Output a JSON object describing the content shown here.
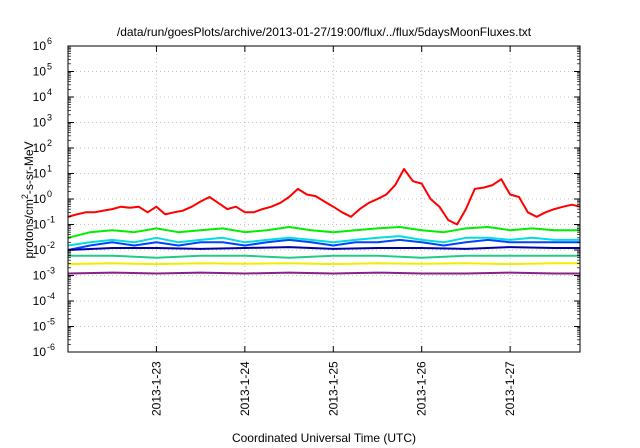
{
  "chart_data": {
    "type": "line",
    "title": "/data/run/goesPlots/archive/2013-01-27/19:00/flux/../flux/5daysMoonFluxes.txt",
    "xlabel": "Coordinated Universal Time (UTC)",
    "ylabel": "protons/cm2-s-sr-MeV",
    "ylabel_parts": [
      "protons/cm",
      "2",
      "-s-sr-MeV"
    ],
    "yscale": "log",
    "ylim": [
      1e-06,
      1000000.0
    ],
    "y_tick_exponents": [
      -6,
      -5,
      -4,
      -3,
      -2,
      -1,
      0,
      1,
      2,
      3,
      4,
      5,
      6
    ],
    "y_tick_base": "10",
    "xlim": [
      "2013-01-22 00:00",
      "2013-01-27 19:00"
    ],
    "x_tick_labels": [
      "2013-1-23",
      "2013-1-24",
      "2013-1-25",
      "2013-1-26",
      "2013-1-27"
    ],
    "x_tick_days_from_2013_01_22": [
      1,
      2,
      3,
      4,
      5
    ],
    "grid": true,
    "legend": "none",
    "series": [
      {
        "color": "#ff0000",
        "x_days": [
          0,
          0.1,
          0.2,
          0.3,
          0.4,
          0.5,
          0.6,
          0.7,
          0.8,
          0.9,
          1.0,
          1.1,
          1.2,
          1.3,
          1.4,
          1.5,
          1.6,
          1.7,
          1.8,
          1.9,
          2.0,
          2.1,
          2.2,
          2.3,
          2.4,
          2.5,
          2.6,
          2.7,
          2.8,
          2.9,
          3.0,
          3.1,
          3.2,
          3.3,
          3.4,
          3.5,
          3.6,
          3.7,
          3.8,
          3.9,
          4.0,
          4.1,
          4.2,
          4.3,
          4.4,
          4.5,
          4.6,
          4.7,
          4.8,
          4.9,
          5.0,
          5.1,
          5.2,
          5.3,
          5.4,
          5.5,
          5.6,
          5.7,
          5.79
        ],
        "y": [
          0.2,
          0.25,
          0.3,
          0.3,
          0.35,
          0.4,
          0.5,
          0.45,
          0.5,
          0.3,
          0.5,
          0.25,
          0.3,
          0.35,
          0.5,
          0.8,
          1.2,
          0.7,
          0.4,
          0.5,
          0.3,
          0.3,
          0.4,
          0.5,
          0.7,
          1.2,
          2.5,
          1.5,
          1.3,
          0.8,
          0.5,
          0.3,
          0.2,
          0.4,
          0.7,
          1.0,
          1.5,
          3.5,
          15,
          5,
          4,
          1.0,
          0.5,
          0.15,
          0.1,
          0.4,
          2.5,
          2.8,
          3.5,
          6,
          1.5,
          1.2,
          0.3,
          0.2,
          0.3,
          0.4,
          0.5,
          0.6,
          0.5
        ]
      },
      {
        "color": "#00ee00",
        "x_days": [
          0,
          0.25,
          0.5,
          0.75,
          1.0,
          1.25,
          1.5,
          1.75,
          2.0,
          2.25,
          2.5,
          2.75,
          3.0,
          3.25,
          3.5,
          3.75,
          4.0,
          4.25,
          4.5,
          4.75,
          5.0,
          5.25,
          5.5,
          5.79
        ],
        "y": [
          0.03,
          0.05,
          0.06,
          0.05,
          0.07,
          0.05,
          0.06,
          0.07,
          0.05,
          0.06,
          0.08,
          0.06,
          0.05,
          0.06,
          0.07,
          0.08,
          0.06,
          0.05,
          0.07,
          0.08,
          0.06,
          0.07,
          0.06,
          0.06
        ]
      },
      {
        "color": "#00dddd",
        "x_days": [
          0,
          0.25,
          0.5,
          0.75,
          1.0,
          1.25,
          1.5,
          1.75,
          2.0,
          2.25,
          2.5,
          2.75,
          3.0,
          3.25,
          3.5,
          3.75,
          4.0,
          4.25,
          4.5,
          4.75,
          5.0,
          5.25,
          5.5,
          5.79
        ],
        "y": [
          0.015,
          0.02,
          0.025,
          0.02,
          0.03,
          0.02,
          0.025,
          0.03,
          0.02,
          0.025,
          0.03,
          0.025,
          0.02,
          0.025,
          0.03,
          0.035,
          0.025,
          0.02,
          0.03,
          0.03,
          0.025,
          0.03,
          0.025,
          0.025
        ]
      },
      {
        "color": "#0044ff",
        "x_days": [
          0,
          0.25,
          0.5,
          0.75,
          1.0,
          1.25,
          1.5,
          1.75,
          2.0,
          2.25,
          2.5,
          2.75,
          3.0,
          3.25,
          3.5,
          3.75,
          4.0,
          4.25,
          4.5,
          4.75,
          5.0,
          5.25,
          5.5,
          5.79
        ],
        "y": [
          0.01,
          0.015,
          0.02,
          0.015,
          0.02,
          0.015,
          0.02,
          0.02,
          0.015,
          0.02,
          0.025,
          0.02,
          0.015,
          0.02,
          0.02,
          0.025,
          0.02,
          0.015,
          0.02,
          0.025,
          0.02,
          0.02,
          0.02,
          0.02
        ]
      },
      {
        "color": "#0000aa",
        "x_days": [
          0,
          0.5,
          1.0,
          1.5,
          2.0,
          2.5,
          3.0,
          3.5,
          4.0,
          4.5,
          5.0,
          5.5,
          5.79
        ],
        "y": [
          0.01,
          0.012,
          0.012,
          0.011,
          0.012,
          0.013,
          0.011,
          0.012,
          0.012,
          0.011,
          0.013,
          0.012,
          0.012
        ]
      },
      {
        "color": "#22cc88",
        "x_days": [
          0,
          0.5,
          1.0,
          1.5,
          2.0,
          2.5,
          3.0,
          3.5,
          4.0,
          4.5,
          5.0,
          5.5,
          5.79
        ],
        "y": [
          0.006,
          0.006,
          0.005,
          0.006,
          0.006,
          0.005,
          0.006,
          0.006,
          0.005,
          0.006,
          0.006,
          0.006,
          0.006
        ]
      },
      {
        "color": "#eeee00",
        "x_days": [
          0,
          0.5,
          1.0,
          1.5,
          2.0,
          2.5,
          3.0,
          3.5,
          4.0,
          4.5,
          5.0,
          5.5,
          5.79
        ],
        "y": [
          0.0028,
          0.003,
          0.0028,
          0.003,
          0.0029,
          0.003,
          0.0028,
          0.003,
          0.0029,
          0.003,
          0.0028,
          0.003,
          0.003
        ]
      },
      {
        "color": "#882288",
        "x_days": [
          0,
          0.5,
          1.0,
          1.5,
          2.0,
          2.5,
          3.0,
          3.5,
          4.0,
          4.5,
          5.0,
          5.5,
          5.79
        ],
        "y": [
          0.0012,
          0.0013,
          0.0012,
          0.0013,
          0.0012,
          0.0013,
          0.0012,
          0.0013,
          0.0012,
          0.0012,
          0.0013,
          0.0012,
          0.0012
        ]
      }
    ]
  }
}
